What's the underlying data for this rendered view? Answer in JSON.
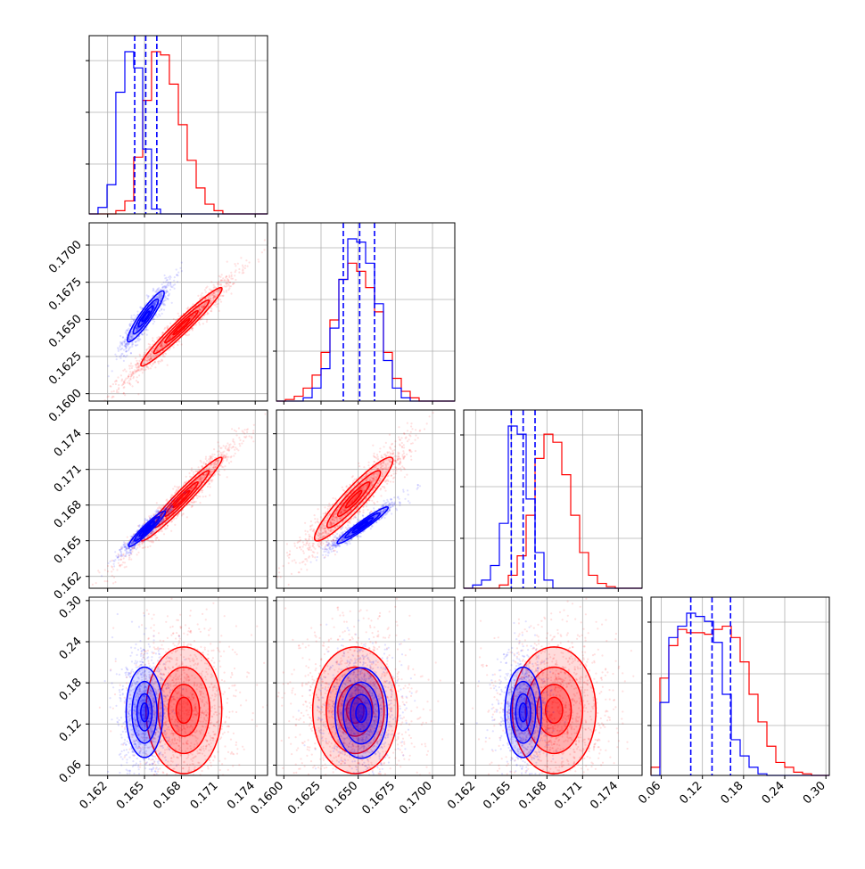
{
  "chart_data": {
    "type": "corner",
    "description_colors": {
      "series_a": "#0000ff",
      "series_b": "#ff0000"
    },
    "parameters": [
      {
        "index": 0,
        "range": [
          0.1605,
          0.175
        ],
        "ticks": [
          0.162,
          0.165,
          0.168,
          0.171,
          0.174
        ],
        "tick_labels": [
          "0.162",
          "0.165",
          "0.168",
          "0.171",
          "0.174"
        ],
        "quantiles_blue": [
          0.1642,
          0.1651,
          0.166
        ]
      },
      {
        "index": 1,
        "range": [
          0.1595,
          0.1715
        ],
        "ticks": [
          0.16,
          0.1625,
          0.165,
          0.1675,
          0.17
        ],
        "tick_labels": [
          "0.1600",
          "0.1625",
          "0.1650",
          "0.1675",
          "0.1700"
        ],
        "quantiles_blue": [
          0.164,
          0.1651,
          0.1661
        ]
      },
      {
        "index": 2,
        "range": [
          0.161,
          0.176
        ],
        "ticks": [
          0.162,
          0.165,
          0.168,
          0.171,
          0.174
        ],
        "tick_labels": [
          "0.162",
          "0.165",
          "0.168",
          "0.171",
          "0.174"
        ],
        "quantiles_blue": [
          0.165,
          0.166,
          0.167
        ]
      },
      {
        "index": 3,
        "range": [
          0.045,
          0.305
        ],
        "ticks": [
          0.06,
          0.12,
          0.18,
          0.24,
          0.3
        ],
        "tick_labels": [
          "0.06",
          "0.12",
          "0.18",
          "0.24",
          "0.30"
        ],
        "quantiles_blue": [
          0.103,
          0.134,
          0.161
        ]
      }
    ],
    "histograms": [
      {
        "param": 0,
        "edges": [
          0.1605,
          0.16122,
          0.16195,
          0.16267,
          0.1634,
          0.16412,
          0.16485,
          0.16557,
          0.1663,
          0.16702,
          0.16775,
          0.16847,
          0.1692,
          0.16992,
          0.17065,
          0.17137,
          0.1721,
          0.17282,
          0.17355,
          0.17427,
          0.175
        ],
        "blue": [
          0,
          4,
          18,
          75,
          100,
          90,
          40,
          3,
          0,
          0,
          0,
          0,
          0,
          0,
          0,
          0,
          0,
          0,
          0,
          0
        ],
        "red": [
          0,
          0,
          0,
          2,
          8,
          35,
          70,
          100,
          98,
          80,
          55,
          33,
          16,
          6,
          2,
          0,
          0,
          0,
          0,
          0
        ]
      },
      {
        "param": 1,
        "edges": [
          0.1595,
          0.1601,
          0.1607,
          0.1613,
          0.1619,
          0.1625,
          0.1631,
          0.1637,
          0.1643,
          0.1649,
          0.1655,
          0.1661,
          0.1667,
          0.1673,
          0.1679,
          0.1685,
          0.1691,
          0.1697,
          0.1703,
          0.1709,
          0.1715
        ],
        "blue": [
          0,
          0,
          0,
          2,
          8,
          20,
          45,
          75,
          100,
          98,
          85,
          60,
          25,
          8,
          2,
          0,
          0,
          0,
          0,
          0
        ],
        "red": [
          0,
          1,
          3,
          8,
          16,
          30,
          50,
          75,
          85,
          80,
          70,
          55,
          30,
          14,
          6,
          2,
          0,
          0,
          0,
          0
        ]
      },
      {
        "param": 2,
        "edges": [
          0.161,
          0.16175,
          0.1625,
          0.16325,
          0.164,
          0.16475,
          0.1655,
          0.16625,
          0.167,
          0.16775,
          0.1685,
          0.16925,
          0.17,
          0.17075,
          0.1715,
          0.17225,
          0.173,
          0.17375,
          0.1745,
          0.17525,
          0.176
        ],
        "blue": [
          0,
          2,
          5,
          14,
          40,
          100,
          95,
          55,
          22,
          5,
          0,
          0,
          0,
          0,
          0,
          0,
          0,
          0,
          0,
          0
        ],
        "red": [
          0,
          0,
          0,
          0,
          2,
          8,
          20,
          45,
          80,
          95,
          90,
          70,
          45,
          22,
          8,
          3,
          1,
          0,
          0,
          0
        ]
      },
      {
        "param": 3,
        "edges": [
          0.045,
          0.058,
          0.071,
          0.084,
          0.097,
          0.11,
          0.123,
          0.136,
          0.149,
          0.162,
          0.175,
          0.188,
          0.201,
          0.214,
          0.227,
          0.24,
          0.253,
          0.266,
          0.279,
          0.292,
          0.305
        ],
        "blue": [
          0,
          45,
          85,
          92,
          100,
          98,
          95,
          82,
          50,
          22,
          12,
          5,
          1,
          0,
          0,
          0,
          0,
          0,
          0,
          0
        ],
        "red": [
          5,
          60,
          80,
          90,
          88,
          88,
          87,
          90,
          92,
          85,
          70,
          50,
          33,
          18,
          8,
          5,
          2,
          1,
          0,
          0
        ]
      }
    ],
    "pair_panels": [
      {
        "x_param": 0,
        "y_param": 1,
        "blue": {
          "center": [
            0.1651,
            0.1652
          ],
          "sigma": [
            0.00068,
            0.00078
          ],
          "rho": 0.92
        },
        "red": {
          "center": [
            0.168,
            0.1645
          ],
          "sigma": [
            0.0015,
            0.0012
          ],
          "rho": 0.97
        }
      },
      {
        "x_param": 0,
        "y_param": 2,
        "blue": {
          "center": [
            0.1652,
            0.166
          ],
          "sigma": [
            0.00068,
            0.00068
          ],
          "rho": 0.95
        },
        "red": {
          "center": [
            0.168,
            0.1685
          ],
          "sigma": [
            0.0015,
            0.0016
          ],
          "rho": 0.97
        }
      },
      {
        "x_param": 1,
        "y_param": 2,
        "blue": {
          "center": [
            0.1653,
            0.1663
          ],
          "sigma": [
            0.00078,
            0.0007
          ],
          "rho": 0.96
        },
        "red": {
          "center": [
            0.1647,
            0.1685
          ],
          "sigma": [
            0.0012,
            0.0016
          ],
          "rho": 0.93
        }
      },
      {
        "x_param": 0,
        "y_param": 3,
        "blue": {
          "center": [
            0.165,
            0.137
          ],
          "sigma": [
            0.00068,
            0.03
          ],
          "rho": 0.0
        },
        "red": {
          "center": [
            0.1682,
            0.14
          ],
          "sigma": [
            0.0014,
            0.042
          ],
          "rho": 0.0
        }
      },
      {
        "x_param": 1,
        "y_param": 3,
        "blue": {
          "center": [
            0.1652,
            0.136
          ],
          "sigma": [
            0.0008,
            0.03
          ],
          "rho": 0.0
        },
        "red": {
          "center": [
            0.1648,
            0.14
          ],
          "sigma": [
            0.0013,
            0.042
          ],
          "rho": 0.0
        }
      },
      {
        "x_param": 2,
        "y_param": 3,
        "blue": {
          "center": [
            0.166,
            0.137
          ],
          "sigma": [
            0.0007,
            0.03
          ],
          "rho": 0.0
        },
        "red": {
          "center": [
            0.1686,
            0.14
          ],
          "sigma": [
            0.0016,
            0.042
          ],
          "rho": 0.0
        }
      }
    ],
    "grid": true,
    "legend": "none"
  }
}
